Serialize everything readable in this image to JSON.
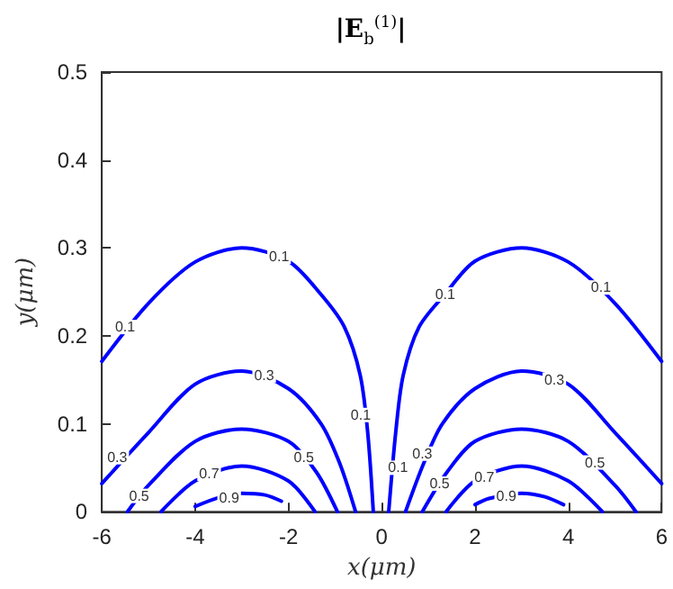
{
  "chart_data": {
    "type": "line",
    "title": "|E$_{b}$$^{(1)}$|",
    "xlabel": "x(μm)",
    "ylabel": "y(μm)",
    "xlim": [
      -6,
      6
    ],
    "xticks": [
      -6,
      -4,
      -2,
      0,
      2,
      4,
      6
    ],
    "ylim": [
      0,
      0.5
    ],
    "yticks": [
      0,
      0.1,
      0.2,
      0.3,
      0.4,
      0.5
    ],
    "grid": false,
    "marker": "none",
    "line_style": "solid",
    "series": [
      {
        "color": "#0000ff",
        "x": [
          -6,
          -5,
          -4,
          -3,
          -2,
          -1.3,
          -0.8,
          -0.46,
          -0.3,
          -0.18
        ],
        "values": [
          0.171,
          0.237,
          0.284,
          0.3,
          0.285,
          0.247,
          0.21,
          0.155,
          0.09,
          0
        ]
      },
      {
        "color": "#0000ff",
        "x": [
          -6,
          -5,
          -4,
          -3,
          -2,
          -1.3,
          -0.9,
          -0.56
        ],
        "values": [
          0.032,
          0.09,
          0.145,
          0.16,
          0.14,
          0.1,
          0.055,
          0
        ]
      },
      {
        "color": "#0000ff",
        "x": [
          -5.45,
          -5,
          -4,
          -3,
          -2,
          -1.4,
          -0.95
        ],
        "values": [
          0,
          0.03,
          0.08,
          0.094,
          0.08,
          0.045,
          0
        ]
      },
      {
        "color": "#0000ff",
        "x": [
          -4.73,
          -4,
          -3,
          -2,
          -1.43
        ],
        "values": [
          0,
          0.035,
          0.052,
          0.035,
          0
        ]
      },
      {
        "color": "#0000ff",
        "x": [
          -4,
          -3.5,
          -3,
          -2.5,
          -2.15
        ],
        "values": [
          0.006,
          0.016,
          0.021,
          0.019,
          0.012
        ]
      },
      {
        "color": "#0000ff",
        "x": [
          0.15,
          0.3,
          0.46,
          0.8,
          1.35,
          2,
          3,
          4,
          5,
          6
        ],
        "values": [
          0,
          0.09,
          0.155,
          0.21,
          0.247,
          0.285,
          0.3,
          0.284,
          0.237,
          0.171
        ]
      },
      {
        "color": "#0000ff",
        "x": [
          0.51,
          0.9,
          1.3,
          2,
          3,
          4,
          5,
          6
        ],
        "values": [
          0,
          0.055,
          0.1,
          0.14,
          0.16,
          0.145,
          0.09,
          0.032
        ]
      },
      {
        "color": "#0000ff",
        "x": [
          0.87,
          1.4,
          2,
          3,
          4,
          5,
          5.45
        ],
        "values": [
          0,
          0.045,
          0.08,
          0.094,
          0.08,
          0.03,
          0
        ]
      },
      {
        "color": "#0000ff",
        "x": [
          1.38,
          2,
          3,
          4,
          4.73
        ],
        "values": [
          0,
          0.035,
          0.052,
          0.035,
          0
        ]
      },
      {
        "color": "#0000ff",
        "x": [
          2,
          2.3,
          3,
          3.5,
          3.9
        ],
        "values": [
          0.008,
          0.015,
          0.021,
          0.017,
          0.008
        ]
      }
    ],
    "annotations": [
      {
        "text": "0.1",
        "x": -5.5,
        "y": 0.21
      },
      {
        "text": "0.1",
        "x": -2.2,
        "y": 0.29
      },
      {
        "text": "0.1",
        "x": -0.45,
        "y": 0.11
      },
      {
        "text": "0.1",
        "x": 0.35,
        "y": 0.05
      },
      {
        "text": "0.1",
        "x": 1.36,
        "y": 0.247
      },
      {
        "text": "0.1",
        "x": 4.7,
        "y": 0.255
      },
      {
        "text": "0.3",
        "x": -5.67,
        "y": 0.062
      },
      {
        "text": "0.3",
        "x": -2.52,
        "y": 0.155
      },
      {
        "text": "0.3",
        "x": 0.87,
        "y": 0.066
      },
      {
        "text": "0.3",
        "x": 3.7,
        "y": 0.15
      },
      {
        "text": "0.5",
        "x": -5.2,
        "y": 0.018
      },
      {
        "text": "0.5",
        "x": -1.67,
        "y": 0.062
      },
      {
        "text": "0.5",
        "x": 1.24,
        "y": 0.032
      },
      {
        "text": "0.5",
        "x": 4.57,
        "y": 0.056
      },
      {
        "text": "0.7",
        "x": -3.7,
        "y": 0.043
      },
      {
        "text": "0.7",
        "x": 2.2,
        "y": 0.039
      },
      {
        "text": "0.9",
        "x": -3.27,
        "y": 0.016
      },
      {
        "text": "0.9",
        "x": 2.67,
        "y": 0.018
      }
    ]
  }
}
